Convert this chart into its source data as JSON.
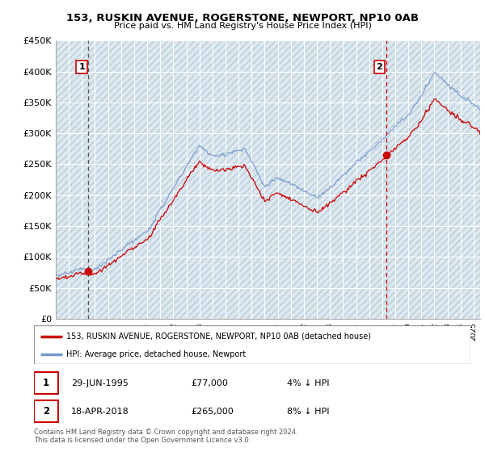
{
  "title": "153, RUSKIN AVENUE, ROGERSTONE, NEWPORT, NP10 0AB",
  "subtitle": "Price paid vs. HM Land Registry's House Price Index (HPI)",
  "ylabel_values": [
    "£0",
    "£50K",
    "£100K",
    "£150K",
    "£200K",
    "£250K",
    "£300K",
    "£350K",
    "£400K",
    "£450K"
  ],
  "ylim": [
    0,
    450000
  ],
  "yticks": [
    0,
    50000,
    100000,
    150000,
    200000,
    250000,
    300000,
    350000,
    400000,
    450000
  ],
  "xmin": 1993.0,
  "xmax": 2025.5,
  "sale1_x": 1995.49,
  "sale1_y": 77000,
  "sale1_label": "1",
  "sale1_date": "29-JUN-1995",
  "sale1_price": "£77,000",
  "sale1_hpi": "4% ↓ HPI",
  "sale2_x": 2018.29,
  "sale2_y": 265000,
  "sale2_label": "2",
  "sale2_date": "18-APR-2018",
  "sale2_price": "£265,000",
  "sale2_hpi": "8% ↓ HPI",
  "legend_line1": "153, RUSKIN AVENUE, ROGERSTONE, NEWPORT, NP10 0AB (detached house)",
  "legend_line2": "HPI: Average price, detached house, Newport",
  "footer1": "Contains HM Land Registry data © Crown copyright and database right 2024.",
  "footer2": "This data is licensed under the Open Government Licence v3.0.",
  "price_line_color": "#cc0000",
  "hpi_line_color": "#7799cc",
  "vline1_color": "#888888",
  "vline2_color": "#cc0000",
  "marker_box_color": "#cc0000",
  "background_color": "#ffffff",
  "plot_bg_color": "#dde8f0",
  "grid_color": "#ffffff",
  "hatch_color": "#c8d8e8"
}
